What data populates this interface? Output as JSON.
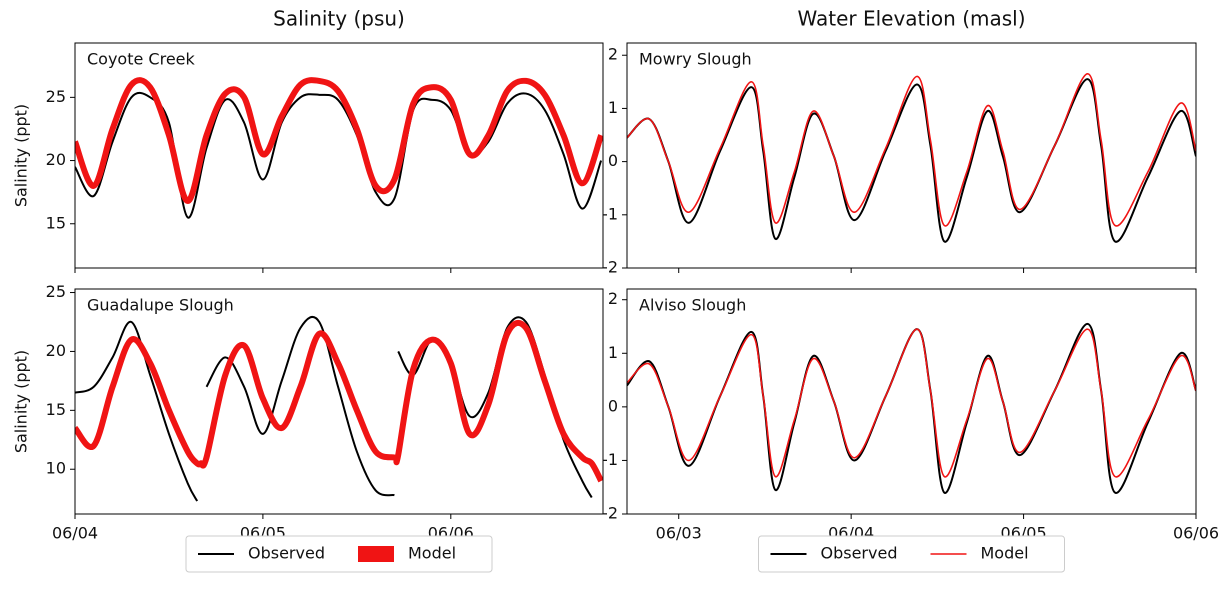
{
  "chart_data": [
    {
      "type": "line",
      "title": "Salinity (psu)",
      "annotation": "Coyote Creek",
      "ylabel": "Salinity (ppt)",
      "x": [
        0,
        0.1,
        0.2,
        0.3,
        0.4,
        0.5,
        0.6,
        0.7,
        0.8,
        0.9,
        1.0,
        1.1,
        1.2,
        1.3,
        1.4,
        1.5,
        1.6,
        1.7,
        1.8,
        1.9,
        2.0,
        2.1,
        2.2,
        2.3,
        2.4,
        2.5,
        2.6,
        2.7,
        2.8
      ],
      "xlim": [
        0,
        2.81
      ],
      "xticks": [
        0,
        1,
        2
      ],
      "ylim": [
        11.5,
        29.3
      ],
      "yticks": [
        15,
        20,
        25
      ],
      "series": [
        {
          "color": "#000000",
          "line_width": 2,
          "values": [
            19.5,
            17.2,
            21.5,
            25,
            25,
            23,
            15.5,
            21,
            24.8,
            23,
            18.5,
            23,
            25,
            25.2,
            24.8,
            22,
            17.5,
            17,
            24,
            24.8,
            24,
            20.5,
            21.5,
            24.5,
            25.3,
            24,
            20.5,
            16.2,
            20
          ]
        },
        {
          "color": "#f01414",
          "line_width": 6,
          "values": [
            21.5,
            18,
            22.5,
            26,
            25.8,
            22,
            16.8,
            22,
            25.3,
            25,
            20.5,
            23.5,
            26,
            26.3,
            25.5,
            22.5,
            18,
            18.5,
            24.5,
            25.8,
            24.8,
            20.5,
            22,
            25.5,
            26.3,
            25.2,
            22,
            18.2,
            22
          ]
        }
      ]
    },
    {
      "type": "line",
      "title": "Water Elevation (masl)",
      "annotation": "Mowry Slough",
      "x": [
        -0.3,
        -0.17,
        -0.06,
        0.06,
        0.24,
        0.42,
        0.49,
        0.56,
        0.67,
        0.78,
        0.9,
        1.02,
        1.2,
        1.38,
        1.46,
        1.54,
        1.67,
        1.79,
        1.88,
        1.98,
        2.18,
        2.37,
        2.45,
        2.53,
        2.72,
        2.91,
        3.0
      ],
      "xlim": [
        -0.3,
        3.0
      ],
      "xticks": [
        0,
        1,
        2,
        3
      ],
      "ylim": [
        -2,
        2.23
      ],
      "yticks": [
        -2,
        -1,
        0,
        1,
        2
      ],
      "series": [
        {
          "color": "#000000",
          "line_width": 2,
          "values": [
            0.45,
            0.8,
            0.0,
            -1.15,
            0.2,
            1.4,
            0.2,
            -1.45,
            -0.3,
            0.9,
            0.1,
            -1.1,
            0.2,
            1.45,
            0.3,
            -1.5,
            -0.3,
            0.95,
            0.1,
            -0.95,
            0.3,
            1.55,
            0.3,
            -1.5,
            -0.3,
            0.95,
            0.1
          ]
        },
        {
          "color": "#f01414",
          "line_width": 1.6,
          "values": [
            0.45,
            0.8,
            0.0,
            -0.95,
            0.25,
            1.5,
            0.3,
            -1.15,
            -0.2,
            0.95,
            0.1,
            -0.95,
            0.25,
            1.6,
            0.4,
            -1.2,
            -0.2,
            1.05,
            0.2,
            -0.9,
            0.3,
            1.65,
            0.4,
            -1.2,
            -0.2,
            1.1,
            0.2
          ]
        }
      ]
    },
    {
      "type": "line",
      "annotation": "Guadalupe Slough",
      "ylabel": "Salinity (ppt)",
      "legend": "below",
      "x": [
        0,
        0.1,
        0.2,
        0.3,
        0.4,
        0.5,
        0.6,
        0.65,
        0.67,
        0.7,
        0.8,
        0.9,
        1.0,
        1.1,
        1.2,
        1.3,
        1.4,
        1.5,
        1.6,
        1.7,
        1.71,
        1.72,
        1.8,
        1.9,
        2.0,
        2.1,
        2.2,
        2.3,
        2.4,
        2.5,
        2.6,
        2.7,
        2.75,
        2.8
      ],
      "xlim": [
        0,
        2.81
      ],
      "xticks": [
        {
          "value": 0,
          "label": "06/04"
        },
        {
          "value": 1,
          "label": "06/05"
        },
        {
          "value": 2,
          "label": "06/06"
        }
      ],
      "ylim": [
        6.2,
        25.3
      ],
      "yticks": [
        10,
        15,
        20,
        25
      ],
      "series": [
        {
          "name": "Observed",
          "color": "#000000",
          "line_width": 2,
          "values": [
            16.5,
            17,
            19.5,
            22.5,
            18,
            13,
            8.8,
            7.3,
            null,
            17,
            19.5,
            17,
            13,
            17.5,
            22,
            22.5,
            17,
            11.5,
            8.2,
            7.8,
            null,
            20,
            18,
            21,
            19,
            14.5,
            16.5,
            22,
            22.5,
            18,
            12.5,
            9,
            7.6,
            null
          ]
        },
        {
          "name": "Model",
          "color": "#f01414",
          "line_width": 6,
          "values": [
            13.5,
            12,
            17,
            21,
            19,
            15,
            11.5,
            10.5,
            10.5,
            11,
            18,
            20.5,
            16,
            13.5,
            17,
            21.5,
            19,
            15,
            11.5,
            11,
            11,
            11.2,
            18.5,
            21,
            19,
            13,
            15.5,
            21.5,
            22,
            17.5,
            13,
            11,
            10.5,
            9
          ]
        }
      ]
    },
    {
      "type": "line",
      "annotation": "Alviso Slough",
      "legend": "below",
      "x": [
        -0.3,
        -0.17,
        -0.06,
        0.06,
        0.24,
        0.42,
        0.49,
        0.56,
        0.67,
        0.78,
        0.9,
        1.02,
        1.2,
        1.38,
        1.46,
        1.54,
        1.67,
        1.79,
        1.88,
        1.98,
        2.18,
        2.37,
        2.45,
        2.53,
        2.72,
        2.91,
        3.0
      ],
      "xlim": [
        -0.3,
        3.0
      ],
      "xticks": [
        {
          "value": 0,
          "label": "06/03"
        },
        {
          "value": 1,
          "label": "06/04"
        },
        {
          "value": 2,
          "label": "06/05"
        },
        {
          "value": 3,
          "label": "06/06"
        }
      ],
      "ylim": [
        -2,
        2.2
      ],
      "yticks": [
        -2,
        -1,
        0,
        1,
        2
      ],
      "series": [
        {
          "name": "Observed",
          "color": "#000000",
          "line_width": 2,
          "values": [
            0.4,
            0.85,
            0.0,
            -1.1,
            0.2,
            1.4,
            0.2,
            -1.55,
            -0.3,
            0.95,
            0.1,
            -1.0,
            0.2,
            1.45,
            0.3,
            -1.6,
            -0.3,
            0.95,
            0.1,
            -0.9,
            0.3,
            1.55,
            0.3,
            -1.6,
            -0.3,
            1.0,
            0.3
          ]
        },
        {
          "name": "Model",
          "color": "#f01414",
          "line_width": 1.6,
          "values": [
            0.45,
            0.8,
            0.0,
            -1.0,
            0.2,
            1.35,
            0.2,
            -1.3,
            -0.25,
            0.9,
            0.1,
            -0.95,
            0.2,
            1.45,
            0.3,
            -1.3,
            -0.25,
            0.9,
            0.1,
            -0.85,
            0.3,
            1.45,
            0.3,
            -1.3,
            -0.25,
            0.95,
            0.3
          ]
        }
      ]
    }
  ]
}
